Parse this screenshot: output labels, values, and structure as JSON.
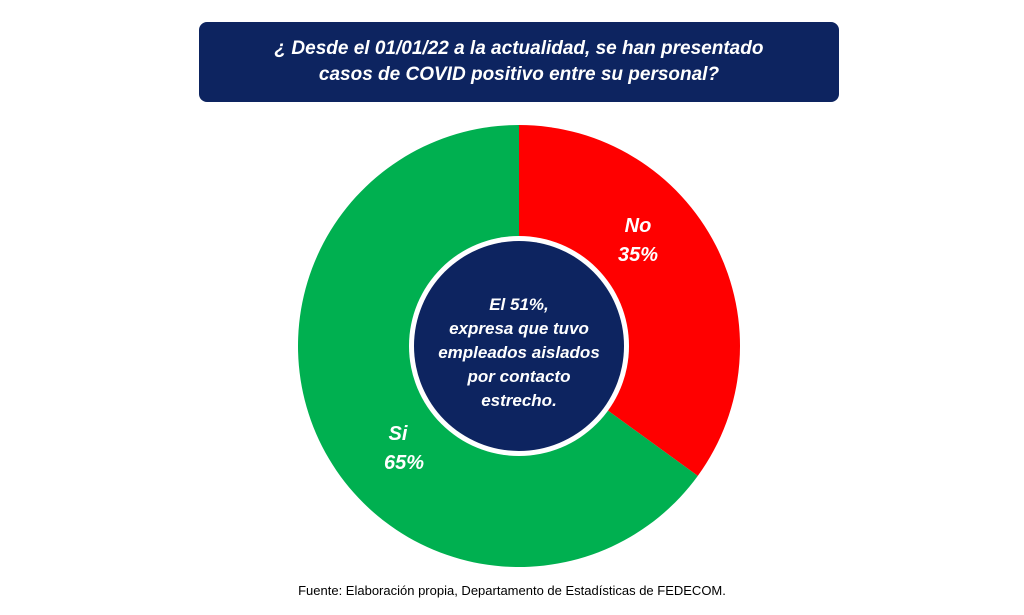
{
  "title": {
    "line1": "¿ Desde el 01/01/22 a la actualidad, se han presentado",
    "line2": "casos de COVID positivo entre su personal?"
  },
  "chart_data": {
    "type": "pie",
    "variant": "donut",
    "categories": [
      "No",
      "Si"
    ],
    "values": [
      35,
      65
    ],
    "labels": [
      "35%",
      "65%"
    ],
    "colors": [
      "#ff0000",
      "#00b050"
    ],
    "center_color": "#0d2460"
  },
  "center_note": {
    "line1": "El 51%,",
    "line2": "expresa que tuvo",
    "line3": "empleados aislados",
    "line4": "por contacto",
    "line5": "estrecho."
  },
  "source": "Fuente: Elaboración propia, Departamento de Estadísticas de FEDECOM."
}
